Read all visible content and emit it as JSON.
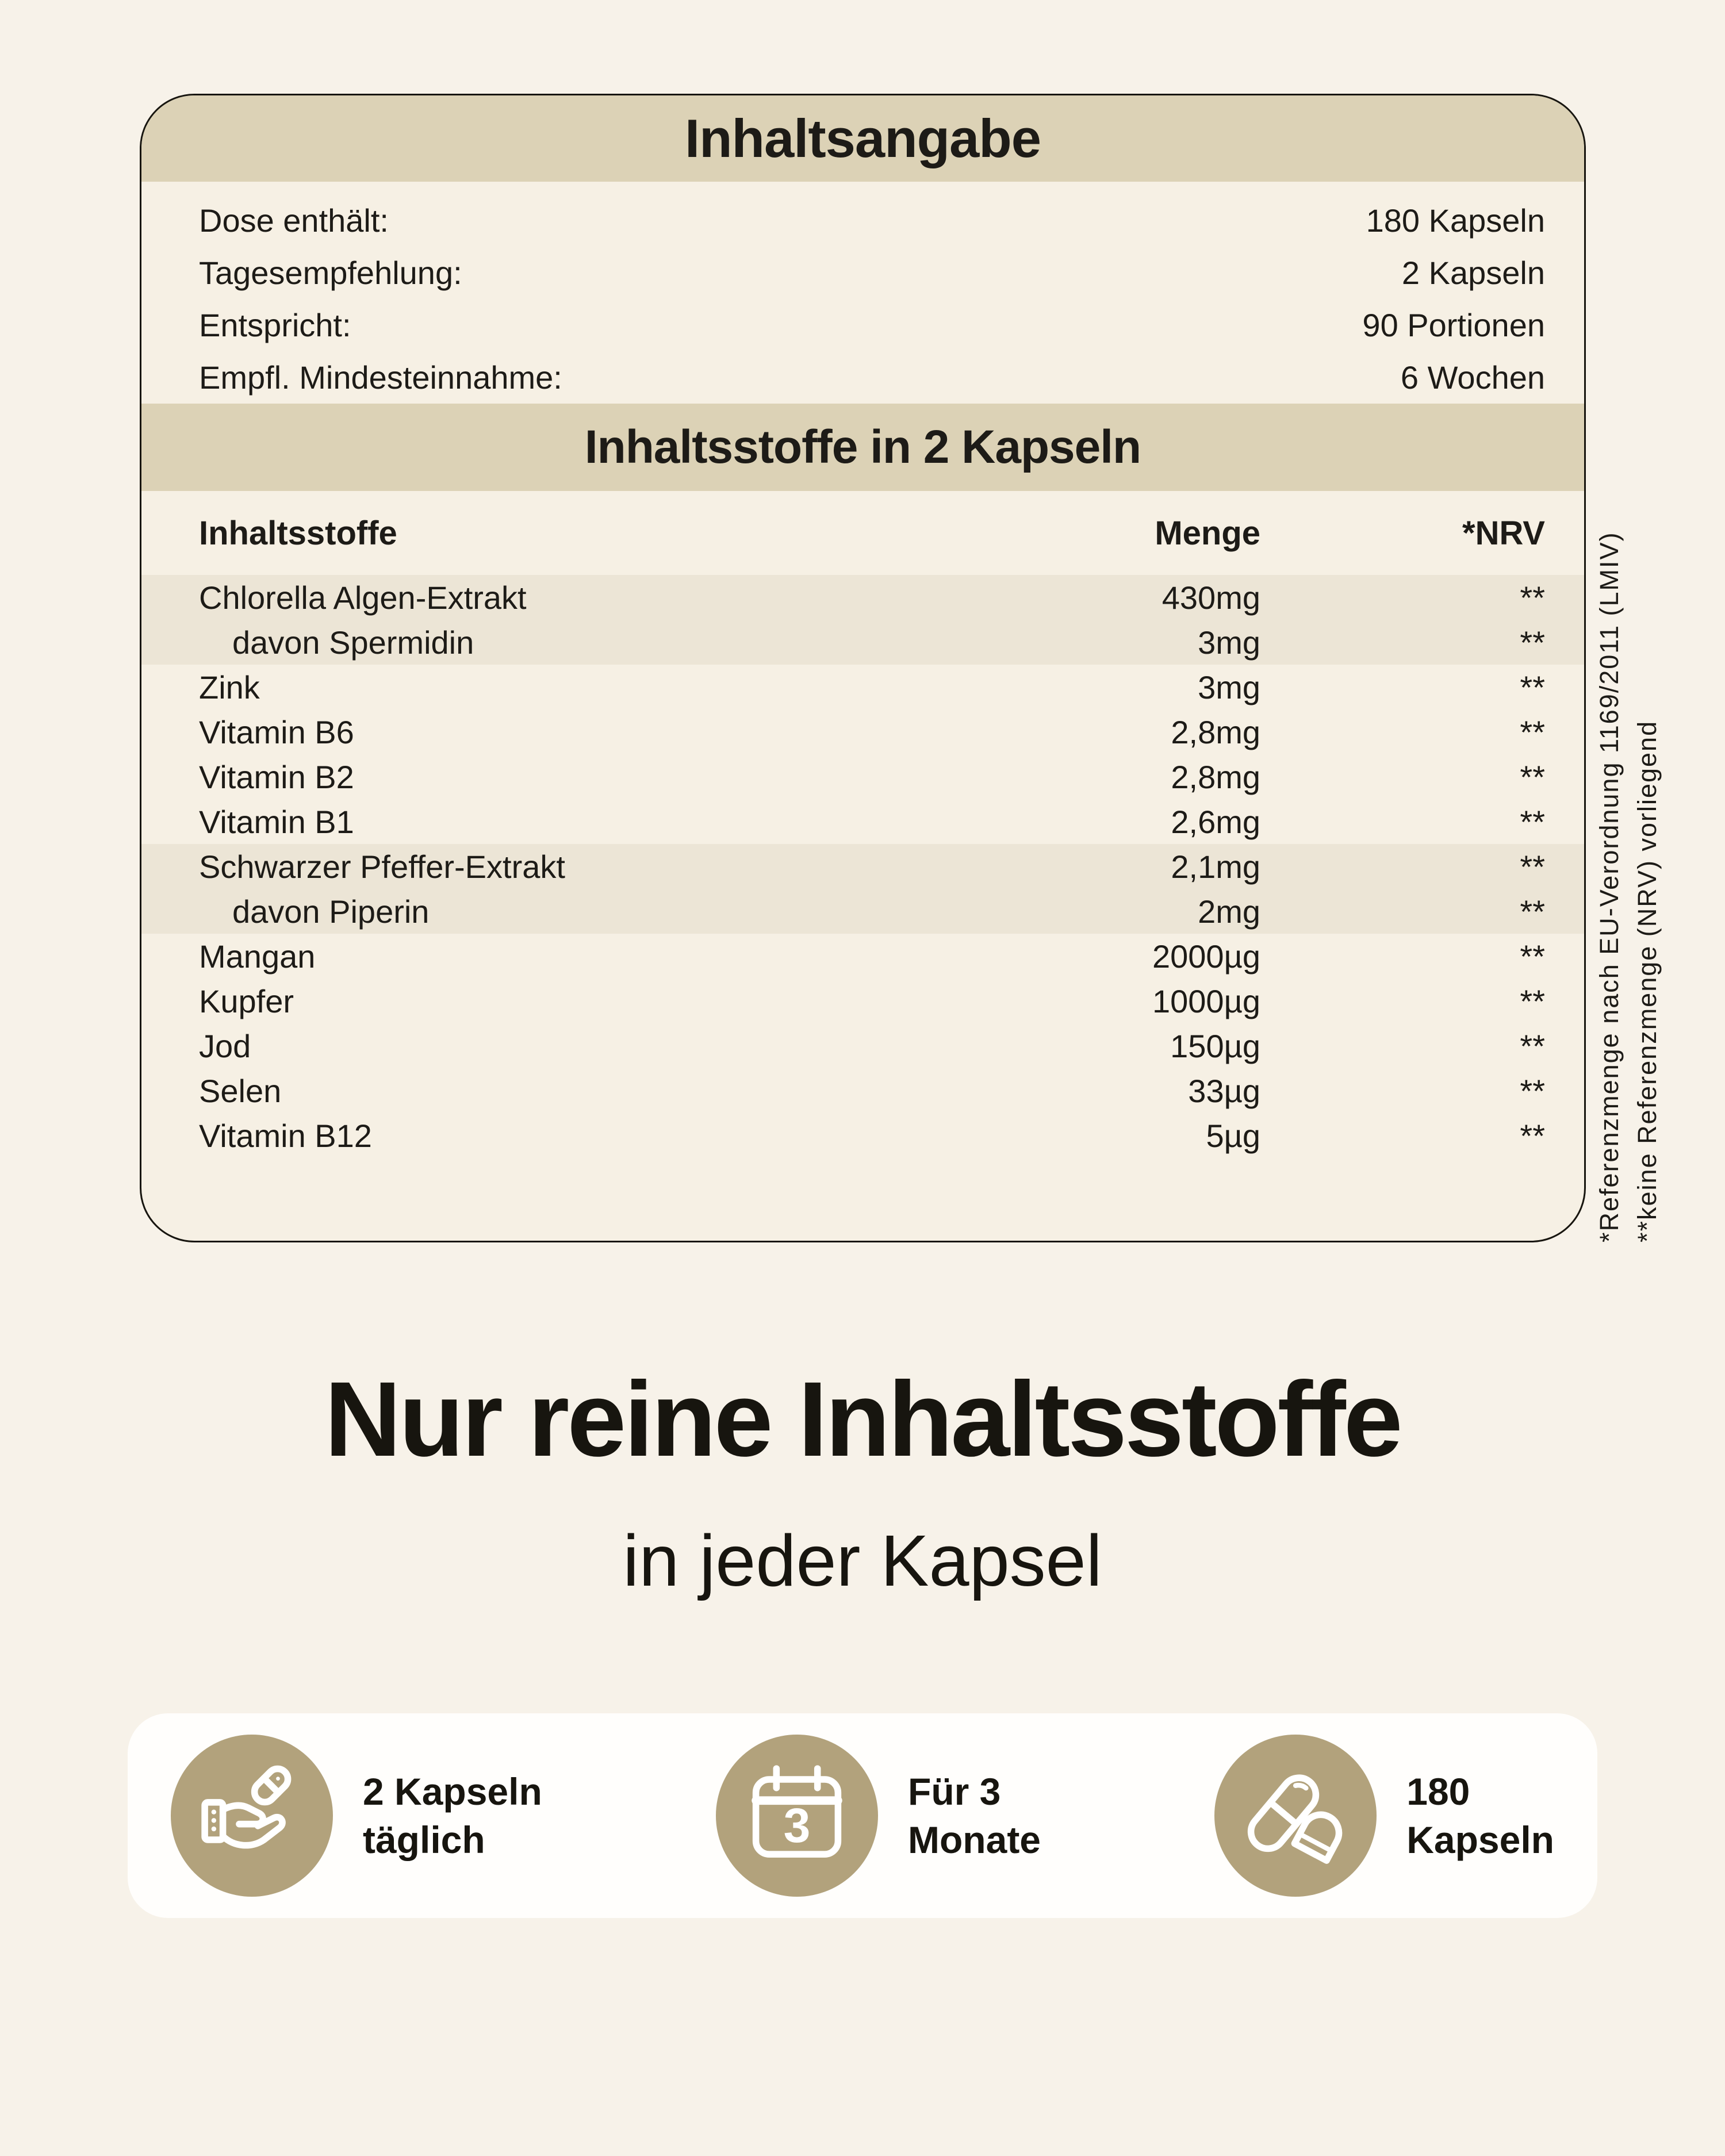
{
  "colors": {
    "page_bg": "#f7f2e9",
    "card_bg": "#f6f0e4",
    "banner_bg": "#dcd2b6",
    "stripe_bg": "#ece5d6",
    "gold": "#b2a27c",
    "text": "#1d1b17",
    "features_card_bg": "#fffefc"
  },
  "panel": {
    "title": "Inhaltsangabe",
    "info_rows": [
      {
        "label": "Dose enthält:",
        "value": "180 Kapseln"
      },
      {
        "label": "Tagesempfehlung:",
        "value": "2 Kapseln"
      },
      {
        "label": "Entspricht:",
        "value": "90 Portionen"
      },
      {
        "label": "Empfl. Mindesteinnahme:",
        "value": "6 Wochen"
      }
    ],
    "section_title": "Inhaltsstoffe in 2 Kapseln",
    "table": {
      "headers": [
        "Inhaltsstoffe",
        "Menge",
        "*NRV"
      ],
      "rows": [
        {
          "name": "Chlorella Algen-Extrakt",
          "amount": "430mg",
          "nrv": "**",
          "indent": false,
          "striped": true
        },
        {
          "name": "davon Spermidin",
          "amount": "3mg",
          "nrv": "**",
          "indent": true,
          "striped": true
        },
        {
          "name": "Zink",
          "amount": "3mg",
          "nrv": "**",
          "indent": false,
          "striped": false
        },
        {
          "name": "Vitamin B6",
          "amount": "2,8mg",
          "nrv": "**",
          "indent": false,
          "striped": false
        },
        {
          "name": "Vitamin B2",
          "amount": "2,8mg",
          "nrv": "**",
          "indent": false,
          "striped": false
        },
        {
          "name": "Vitamin B1",
          "amount": "2,6mg",
          "nrv": "**",
          "indent": false,
          "striped": false
        },
        {
          "name": "Schwarzer Pfeffer-Extrakt",
          "amount": "2,1mg",
          "nrv": "**",
          "indent": false,
          "striped": true
        },
        {
          "name": "davon Piperin",
          "amount": "2mg",
          "nrv": "**",
          "indent": true,
          "striped": true
        },
        {
          "name": "Mangan",
          "amount": "2000µg",
          "nrv": "**",
          "indent": false,
          "striped": false
        },
        {
          "name": "Kupfer",
          "amount": "1000µg",
          "nrv": "**",
          "indent": false,
          "striped": false
        },
        {
          "name": "Jod",
          "amount": "150µg",
          "nrv": "**",
          "indent": false,
          "striped": false
        },
        {
          "name": "Selen",
          "amount": "33µg",
          "nrv": "**",
          "indent": false,
          "striped": false
        },
        {
          "name": "Vitamin B12",
          "amount": "5µg",
          "nrv": "**",
          "indent": false,
          "striped": false
        }
      ]
    },
    "footnotes": [
      "*Referenzmenge nach EU-Verordnung 1169/2011 (LMIV)",
      "**keine Referenzmenge (NRV) vorliegend"
    ]
  },
  "hero": {
    "title": "Nur reine Inhaltsstoffe",
    "subtitle": "in jeder Kapsel"
  },
  "features": [
    {
      "icon": "hand-capsule-icon",
      "line1": "2 Kapseln",
      "line2": "täglich"
    },
    {
      "icon": "calendar-icon",
      "line1": "Für 3",
      "line2": "Monate",
      "badge": "3"
    },
    {
      "icon": "capsules-icon",
      "line1": "180",
      "line2": "Kapseln"
    }
  ]
}
